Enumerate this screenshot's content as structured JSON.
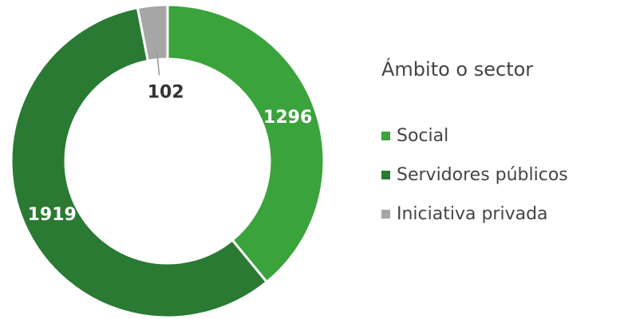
{
  "chart_data": {
    "type": "donut",
    "title": "Ámbito o sector",
    "categories": [
      "Social",
      "Servidores públicos",
      "Iniciativa privada"
    ],
    "values": [
      1296,
      1919,
      102
    ],
    "colors": [
      "#3aa33c",
      "#2a7a33",
      "#a6a6a6"
    ],
    "legend": "right"
  }
}
